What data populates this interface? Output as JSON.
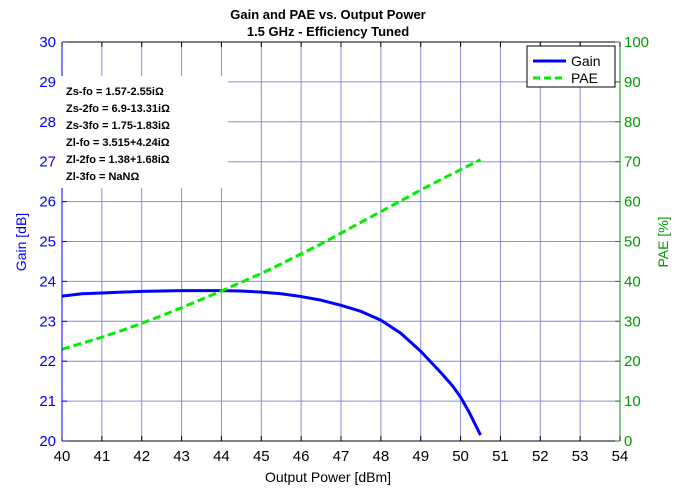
{
  "chart_data": {
    "type": "line",
    "title": "Gain and PAE vs. Output Power",
    "subtitle": "1.5 GHz - Efficiency Tuned",
    "xlabel": "Output Power [dBm]",
    "ylabel_left": "Gain [dB]",
    "ylabel_right": "PAE [%]",
    "xlim": [
      40,
      54
    ],
    "ylim_left": [
      20,
      30
    ],
    "ylim_right": [
      0,
      100
    ],
    "x_ticks": [
      "40",
      "41",
      "42",
      "43",
      "44",
      "45",
      "46",
      "47",
      "48",
      "49",
      "50",
      "51",
      "52",
      "53",
      "54"
    ],
    "y_left_ticks": [
      "20",
      "21",
      "22",
      "23",
      "24",
      "25",
      "26",
      "27",
      "28",
      "29",
      "30"
    ],
    "y_right_ticks": [
      "0",
      "10",
      "20",
      "30",
      "40",
      "50",
      "60",
      "70",
      "80",
      "90",
      "100"
    ],
    "grid": true,
    "legend_position": "top-right",
    "series": [
      {
        "name": "Gain",
        "axis": "left",
        "color": "#0000ff",
        "style": "solid",
        "x": [
          40,
          40.5,
          41,
          41.5,
          42,
          42.5,
          43,
          43.5,
          44,
          44.5,
          45,
          45.5,
          46,
          46.5,
          47,
          47.5,
          48,
          48.5,
          49,
          49.5,
          49.8,
          50,
          50.2,
          50.4,
          50.5
        ],
        "y": [
          23.63,
          23.69,
          23.71,
          23.73,
          23.75,
          23.76,
          23.77,
          23.77,
          23.77,
          23.76,
          23.73,
          23.69,
          23.62,
          23.53,
          23.4,
          23.25,
          23.03,
          22.7,
          22.25,
          21.72,
          21.38,
          21.1,
          20.75,
          20.35,
          20.15
        ]
      },
      {
        "name": "PAE",
        "axis": "right",
        "color": "#00ee00",
        "style": "dashed",
        "x": [
          40,
          40.5,
          41,
          41.5,
          42,
          42.5,
          43,
          43.5,
          44,
          44.5,
          45,
          45.5,
          46,
          46.5,
          47,
          47.5,
          48,
          48.5,
          49,
          49.5,
          50,
          50.5
        ],
        "y": [
          23.0,
          24.5,
          26.0,
          27.7,
          29.5,
          31.4,
          33.4,
          35.5,
          37.6,
          39.8,
          42.0,
          44.4,
          46.9,
          49.4,
          52.1,
          54.8,
          57.5,
          60.2,
          62.9,
          65.5,
          68.0,
          70.5
        ]
      }
    ],
    "annotations": [
      "Zs-fo = 1.57-2.55iΩ",
      "Zs-2fo = 6.9-13.31iΩ",
      "Zs-3fo = 1.75-1.83iΩ",
      "Zl-fo = 3.515+4.24iΩ",
      "Zl-2fo = 1.38+1.68iΩ",
      "Zl-3fo = NaNΩ"
    ]
  }
}
